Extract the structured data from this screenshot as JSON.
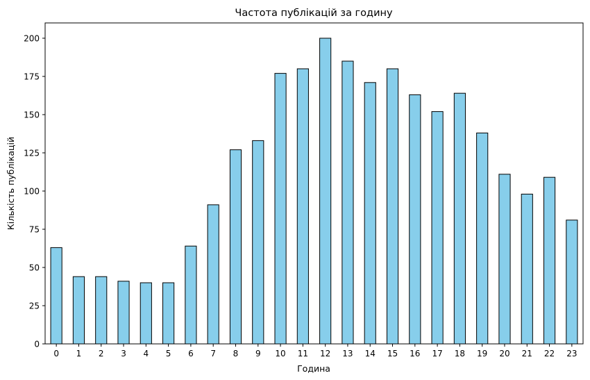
{
  "chart_data": {
    "type": "bar",
    "title": "Частота публікацій за годину",
    "xlabel": "Година",
    "ylabel": "Кількість публікацій",
    "categories": [
      "0",
      "1",
      "2",
      "3",
      "4",
      "5",
      "6",
      "7",
      "8",
      "9",
      "10",
      "11",
      "12",
      "13",
      "14",
      "15",
      "16",
      "17",
      "18",
      "19",
      "20",
      "21",
      "22",
      "23"
    ],
    "values": [
      63,
      44,
      44,
      41,
      40,
      40,
      64,
      91,
      127,
      133,
      177,
      180,
      200,
      185,
      171,
      180,
      163,
      152,
      164,
      138,
      111,
      98,
      109,
      81
    ],
    "ylim": [
      0,
      210
    ],
    "yticks": [
      "0",
      "25",
      "50",
      "75",
      "100",
      "125",
      "150",
      "175",
      "200"
    ],
    "grid": false,
    "legend": "none",
    "colors": {
      "bar_fill": "#87ceeb",
      "bar_edge": "#000000",
      "axes": "#000000",
      "background": "#ffffff"
    }
  }
}
